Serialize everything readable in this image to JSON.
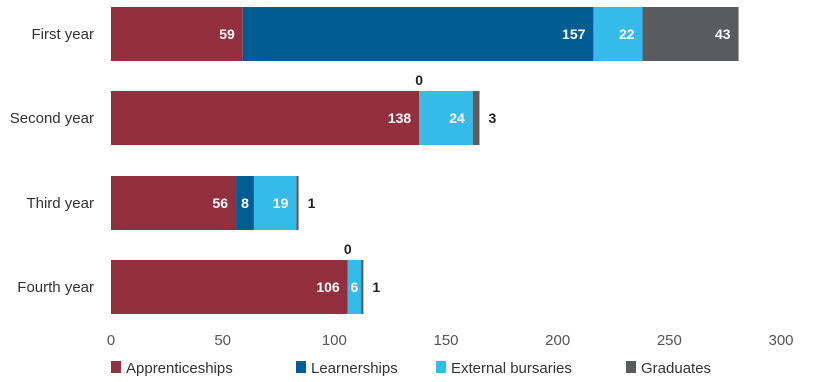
{
  "chart_data": {
    "type": "bar",
    "orientation": "horizontal",
    "stacked": true,
    "categories": [
      "First year",
      "Second year",
      "Third year",
      "Fourth year"
    ],
    "series": [
      {
        "name": "Apprenticeships",
        "color": "#93303f",
        "values": [
          59,
          138,
          56,
          106
        ]
      },
      {
        "name": "Learnerships",
        "color": "#005d94",
        "values": [
          157,
          0,
          8,
          0
        ]
      },
      {
        "name": "External bursaries",
        "color": "#35bbe8",
        "values": [
          22,
          24,
          19,
          6
        ]
      },
      {
        "name": "Graduates",
        "color": "#5a5b5d",
        "values": [
          43,
          3,
          1,
          1
        ]
      }
    ],
    "xlim": [
      0,
      300
    ],
    "xticks": [
      0,
      50,
      100,
      150,
      200,
      250,
      300
    ],
    "legend_position": "bottom",
    "grid": false
  }
}
